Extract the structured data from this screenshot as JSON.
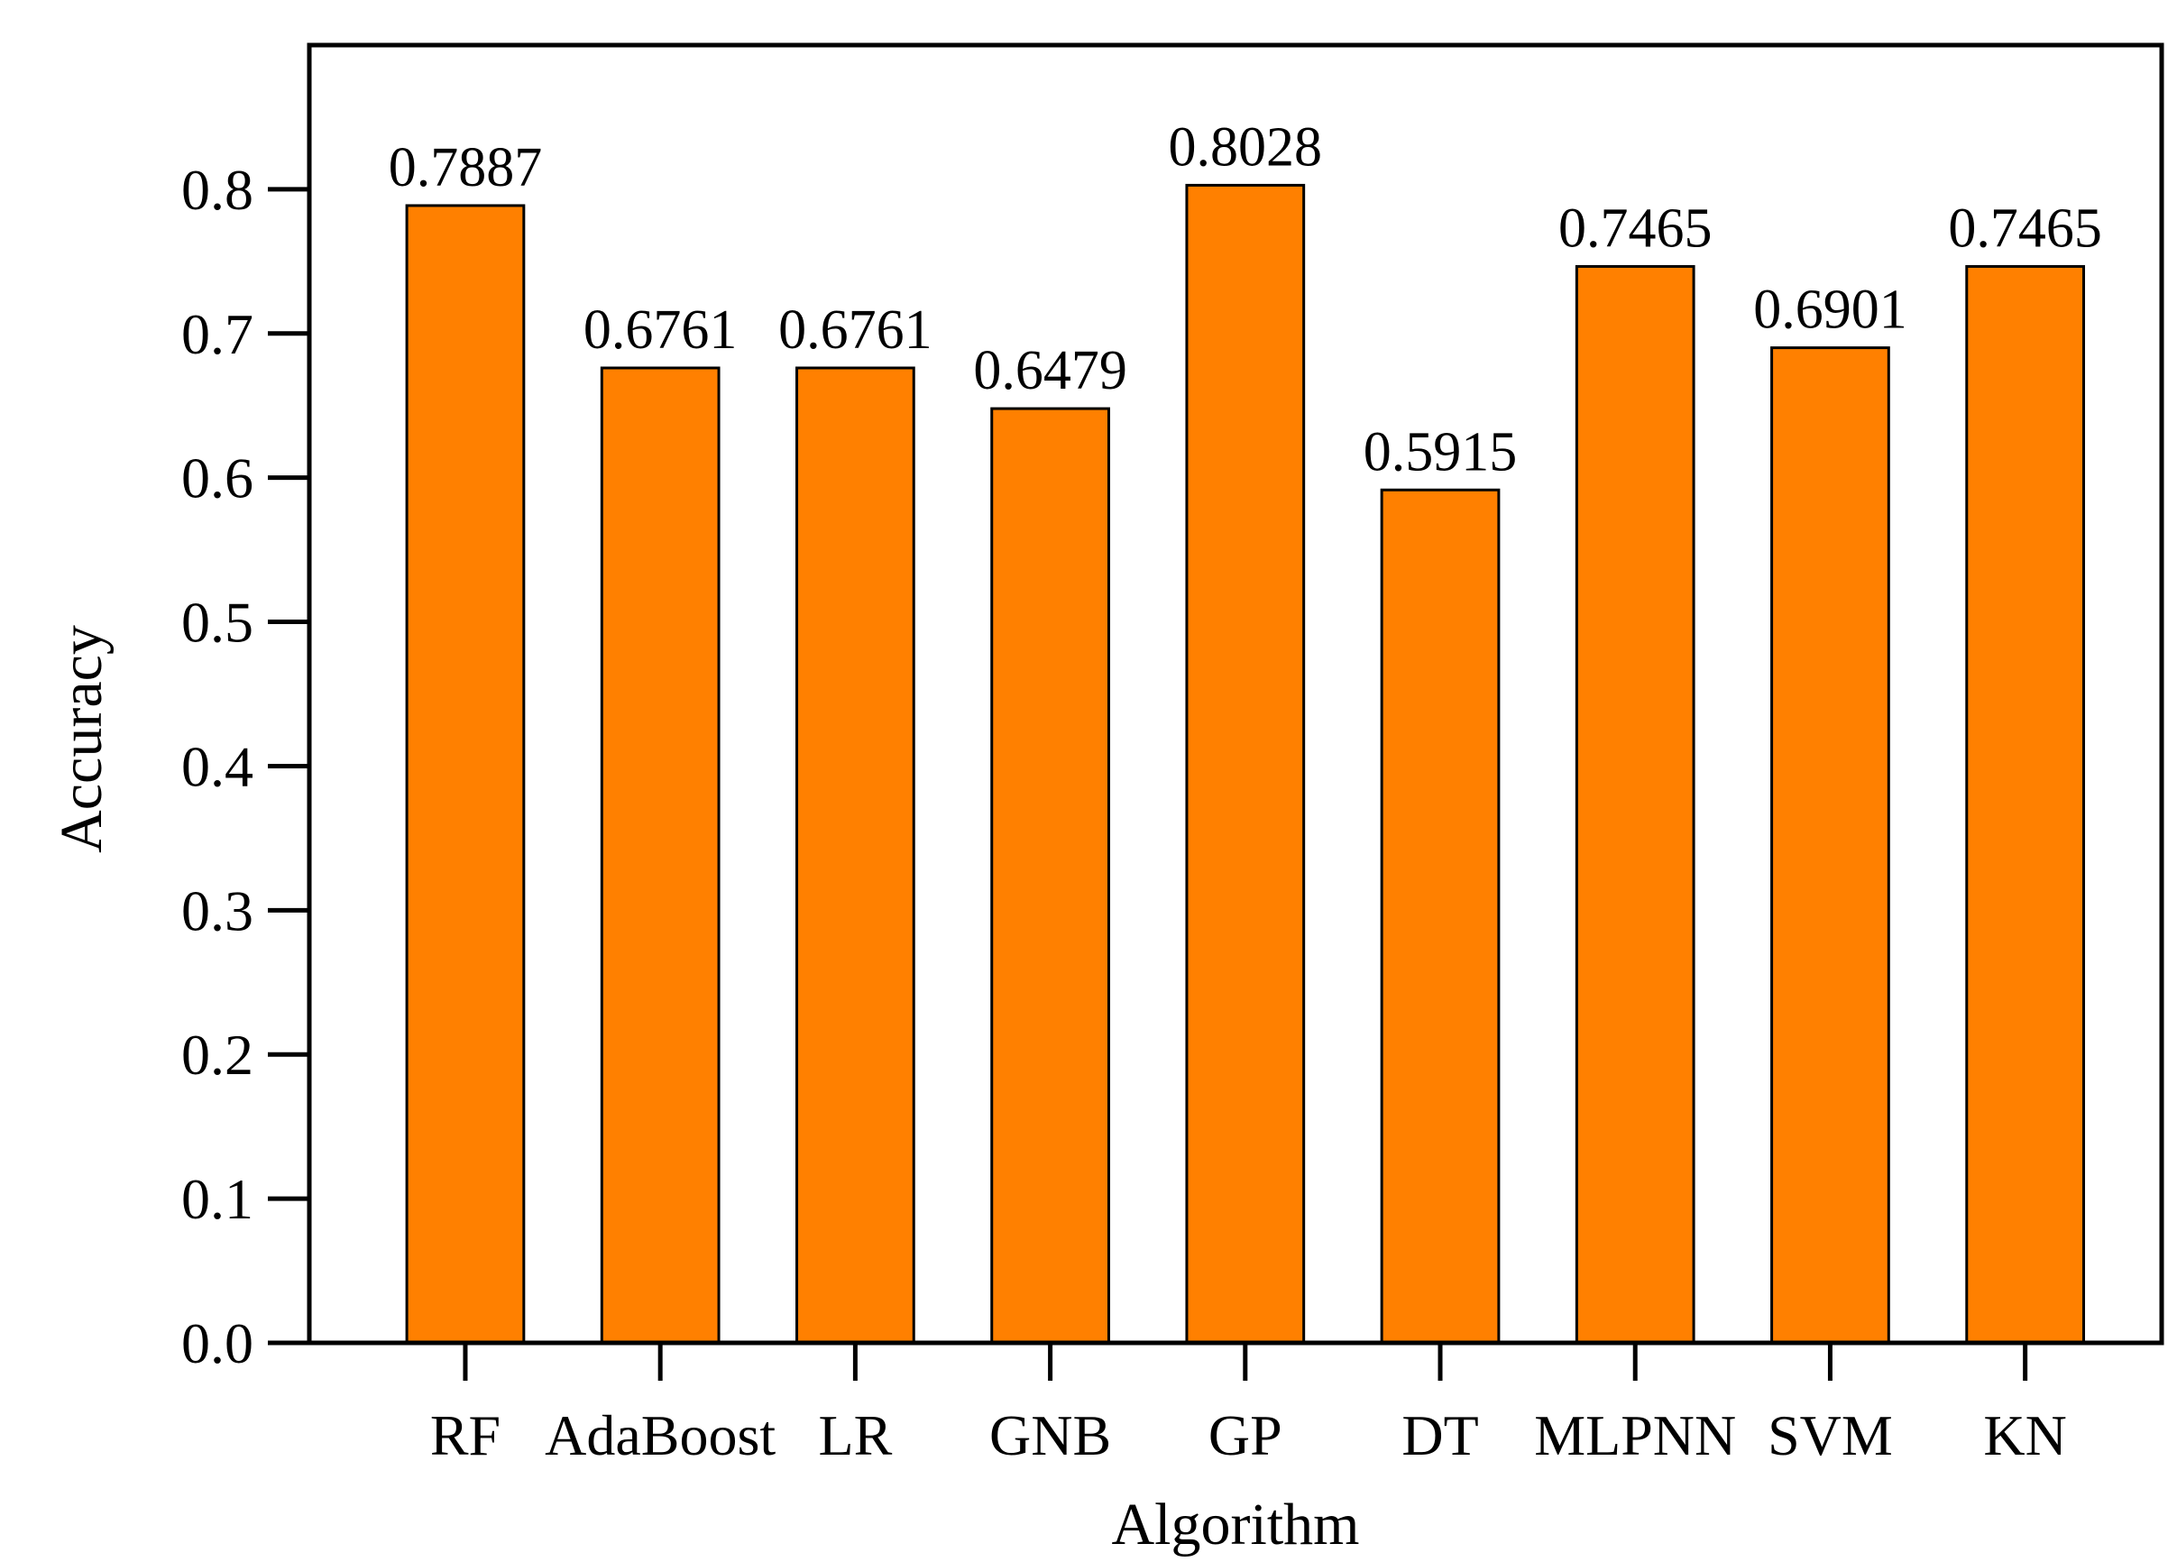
{
  "chart_data": {
    "type": "bar",
    "title": "",
    "xlabel": "Algorithm",
    "ylabel": "Accuracy",
    "categories": [
      "RF",
      "AdaBoost",
      "LR",
      "GNB",
      "GP",
      "DT",
      "MLPNN",
      "SVM",
      "KN"
    ],
    "values": [
      0.7887,
      0.6761,
      0.6761,
      0.6479,
      0.8028,
      0.5915,
      0.7465,
      0.6901,
      0.7465
    ],
    "value_labels": [
      "0.7887",
      "0.6761",
      "0.6761",
      "0.6479",
      "0.8028",
      "0.5915",
      "0.7465",
      "0.6901",
      "0.7465"
    ],
    "ylim": [
      0,
      0.9
    ],
    "yticks": [
      0.0,
      0.1,
      0.2,
      0.3,
      0.4,
      0.5,
      0.6,
      0.7,
      0.8
    ],
    "ytick_labels": [
      "0.0",
      "0.1",
      "0.2",
      "0.3",
      "0.4",
      "0.5",
      "0.6",
      "0.7",
      "0.8"
    ],
    "grid": false,
    "legend": "none",
    "colors": {
      "bar_fill": "#FF8000",
      "bar_stroke": "#000000",
      "axis": "#000000"
    }
  }
}
